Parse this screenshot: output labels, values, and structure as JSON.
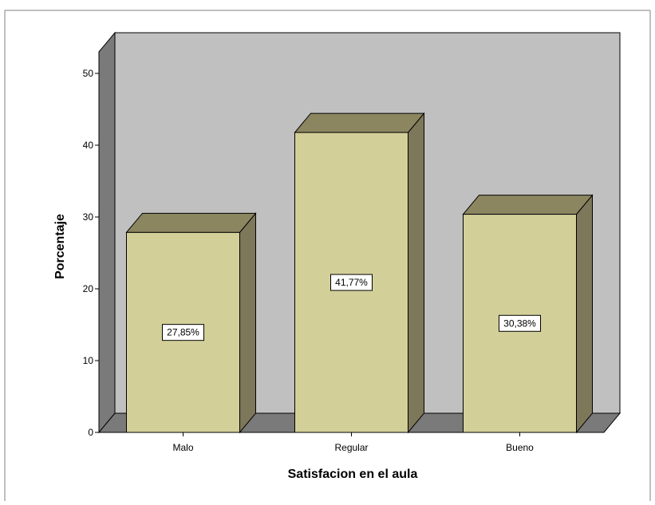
{
  "chart_data": {
    "type": "bar",
    "style": "3d",
    "title": "",
    "xlabel": "Satisfacion en el aula",
    "ylabel": "Porcentaje",
    "categories": [
      "Malo",
      "Regular",
      "Bueno"
    ],
    "values": [
      27.85,
      41.77,
      30.38
    ],
    "data_labels": [
      "27,85%",
      "41,77%",
      "30,38%"
    ],
    "ylim": [
      0,
      53
    ],
    "yticks": [
      0,
      10,
      20,
      30,
      40,
      50
    ],
    "grid": false,
    "legend": "none",
    "colors": {
      "bar_front": "#d3cf99",
      "bar_top": "#8b8660",
      "bar_side": "#7d785a",
      "back_wall": "#c0c0c0",
      "side_wall": "#7a7a7a",
      "floor": "#7a7a7a",
      "outline": "#000000",
      "frame": "#7f7f7f"
    }
  }
}
